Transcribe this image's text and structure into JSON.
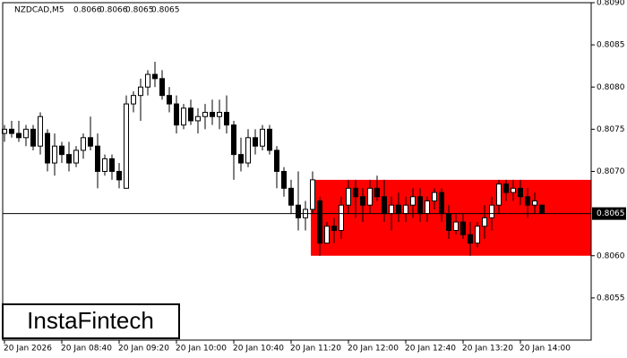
{
  "chart_data": {
    "type": "candlestick",
    "title": "NZDCAD,M5",
    "watermark": "InstaFintech",
    "categories": [
      "20 Jan 2026",
      null,
      null,
      null,
      null,
      null,
      null,
      null,
      "20 Jan 08:40",
      null,
      null,
      null,
      null,
      null,
      null,
      null,
      "20 Jan 09:20",
      null,
      null,
      null,
      null,
      null,
      null,
      null,
      "20 Jan 10:00",
      null,
      null,
      null,
      null,
      null,
      null,
      null,
      "20 Jan 10:40",
      null,
      null,
      null,
      null,
      null,
      null,
      null,
      "20 Jan 11:20",
      null,
      null,
      null,
      null,
      null,
      null,
      null,
      "20 Jan 12:00",
      null,
      null,
      null,
      null,
      null,
      null,
      null,
      "20 Jan 12:40",
      null,
      null,
      null,
      null,
      null,
      null,
      null,
      "20 Jan 13:20",
      null,
      null,
      null,
      null,
      null,
      null,
      null,
      "20 Jan 14:00",
      null,
      null,
      null
    ],
    "open": [
      0.80745,
      0.8075,
      0.80745,
      0.8074,
      0.8075,
      0.8073,
      0.80745,
      0.8071,
      0.8073,
      0.8072,
      0.8071,
      0.80725,
      0.8074,
      0.8073,
      0.807,
      0.80715,
      0.807,
      0.8068,
      0.8078,
      0.8079,
      0.808,
      0.80815,
      0.8081,
      0.8079,
      0.8078,
      0.80755,
      0.80775,
      0.8076,
      0.80765,
      0.8077,
      0.80765,
      0.8077,
      0.80755,
      0.8072,
      0.8071,
      0.8074,
      0.8073,
      0.8075,
      0.80725,
      0.807,
      0.8068,
      0.8066,
      0.80645,
      0.80655,
      0.80665,
      0.80615,
      0.80635,
      0.8063,
      0.8066,
      0.8068,
      0.8067,
      0.8066,
      0.8068,
      0.8067,
      0.8065,
      0.8066,
      0.8065,
      0.8066,
      0.8067,
      0.8065,
      0.80665,
      0.80675,
      0.8065,
      0.8063,
      0.8064,
      0.80625,
      0.80615,
      0.80635,
      0.80645,
      0.8066,
      0.80685,
      0.80675,
      0.8068,
      0.8067,
      0.8066,
      0.8066
    ],
    "high": [
      0.80755,
      0.8076,
      0.8076,
      0.80755,
      0.80755,
      0.8077,
      0.8075,
      0.80745,
      0.80735,
      0.80735,
      0.8073,
      0.80745,
      0.80765,
      0.80745,
      0.8072,
      0.8072,
      0.8071,
      0.8079,
      0.80795,
      0.8081,
      0.8082,
      0.8083,
      0.8082,
      0.808,
      0.8079,
      0.8078,
      0.80785,
      0.80775,
      0.8078,
      0.80785,
      0.80785,
      0.8079,
      0.8076,
      0.8074,
      0.8075,
      0.8075,
      0.80755,
      0.80755,
      0.8073,
      0.80705,
      0.8069,
      0.807,
      0.80665,
      0.807,
      0.8067,
      0.8064,
      0.80645,
      0.8067,
      0.8069,
      0.8069,
      0.8068,
      0.8069,
      0.80695,
      0.8069,
      0.8067,
      0.80675,
      0.8067,
      0.8068,
      0.8068,
      0.8067,
      0.8068,
      0.8068,
      0.8066,
      0.8065,
      0.8065,
      0.8064,
      0.8064,
      0.8066,
      0.8067,
      0.8069,
      0.8069,
      0.8069,
      0.8069,
      0.8068,
      0.80675,
      0.8066
    ],
    "low": [
      0.80735,
      0.8074,
      0.80735,
      0.8073,
      0.80725,
      0.8072,
      0.807,
      0.80695,
      0.8071,
      0.807,
      0.80705,
      0.80715,
      0.80725,
      0.8068,
      0.80695,
      0.8069,
      0.8068,
      0.8068,
      0.8077,
      0.8076,
      0.8079,
      0.808,
      0.80785,
      0.8077,
      0.80745,
      0.8075,
      0.80755,
      0.80745,
      0.8075,
      0.80755,
      0.8075,
      0.80745,
      0.8069,
      0.807,
      0.80705,
      0.8072,
      0.80725,
      0.8072,
      0.8068,
      0.8067,
      0.8065,
      0.8063,
      0.8063,
      0.8065,
      0.806,
      0.80615,
      0.80615,
      0.8062,
      0.8065,
      0.80645,
      0.8064,
      0.8065,
      0.80665,
      0.8064,
      0.8063,
      0.8064,
      0.8064,
      0.80645,
      0.8064,
      0.8064,
      0.80655,
      0.8064,
      0.8062,
      0.80625,
      0.8062,
      0.806,
      0.8061,
      0.8062,
      0.8063,
      0.8065,
      0.80665,
      0.80665,
      0.8066,
      0.80645,
      0.8065,
      0.8065
    ],
    "close": [
      0.8075,
      0.80745,
      0.8074,
      0.8075,
      0.8073,
      0.80765,
      0.8071,
      0.8073,
      0.8072,
      0.8071,
      0.80725,
      0.8074,
      0.8073,
      0.807,
      0.80715,
      0.807,
      0.8069,
      0.8078,
      0.8079,
      0.808,
      0.80815,
      0.8081,
      0.8079,
      0.8078,
      0.80755,
      0.80775,
      0.8076,
      0.80765,
      0.8077,
      0.80765,
      0.8077,
      0.80755,
      0.8072,
      0.8071,
      0.8074,
      0.8073,
      0.8075,
      0.80725,
      0.807,
      0.8068,
      0.8066,
      0.80645,
      0.80655,
      0.8069,
      0.80615,
      0.80635,
      0.8063,
      0.8066,
      0.8068,
      0.8067,
      0.8066,
      0.8068,
      0.8067,
      0.8065,
      0.8066,
      0.8065,
      0.8066,
      0.8067,
      0.8065,
      0.80665,
      0.80675,
      0.8065,
      0.8063,
      0.8064,
      0.80625,
      0.80615,
      0.80635,
      0.80645,
      0.8066,
      0.80685,
      0.80675,
      0.8068,
      0.8067,
      0.8066,
      0.80665,
      0.8065
    ],
    "up_color": "#ffffff",
    "down_color": "#000000",
    "zone": {
      "high": 0.8069,
      "low": 0.806,
      "color": "#ff0000"
    },
    "current_price": 0.8065,
    "ylim": [
      0.805,
      0.809
    ],
    "yticks": [
      0.8055,
      {
        "value": 0.806,
        "label": "0.8060"
      },
      {
        "value": 0.807,
        "label": "0.8070"
      },
      0.8075,
      {
        "value": 0.808,
        "label": "0.8080"
      },
      0.8085,
      {
        "value": 0.809,
        "label": "0.8090"
      }
    ]
  }
}
